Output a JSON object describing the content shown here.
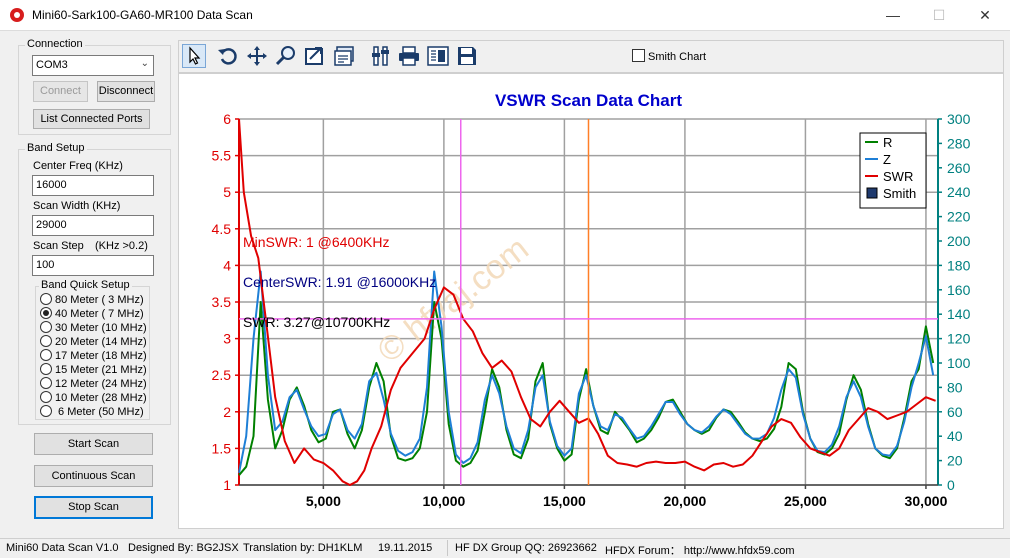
{
  "window": {
    "title": "Mini60-Sark100-GA60-MR100 Data Scan",
    "minimize": "—",
    "maximize": "☐",
    "close": "✕"
  },
  "connection": {
    "title": "Connection",
    "port_value": "COM3",
    "connect_label": "Connect",
    "disconnect_label": "Disconnect",
    "list_ports_label": "List Connected Ports"
  },
  "band_setup": {
    "title": "Band Setup",
    "center_freq_label": "Center Freq  (KHz)",
    "center_freq_value": "16000",
    "scan_width_label": "Scan Width   (KHz)",
    "scan_width_value": "29000",
    "scan_step_label": "Scan Step",
    "scan_step_hint": "(KHz >0.2)",
    "scan_step_value": "100",
    "quick_setup_title": "Band Quick Setup",
    "bands": [
      {
        "label": "80 Meter  ( 3 MHz)",
        "selected": false
      },
      {
        "label": "40 Meter  ( 7 MHz)",
        "selected": true
      },
      {
        "label": "30 Meter (10 MHz)",
        "selected": false
      },
      {
        "label": "20 Meter (14 MHz)",
        "selected": false
      },
      {
        "label": "17 Meter (18 MHz)",
        "selected": false
      },
      {
        "label": "15 Meter (21 MHz)",
        "selected": false
      },
      {
        "label": "12 Meter (24 MHz)",
        "selected": false
      },
      {
        "label": "10 Meter (28 MHz)",
        "selected": false
      },
      {
        "label": " 6 Meter  (50 MHz)",
        "selected": false
      }
    ]
  },
  "scan_buttons": {
    "start": "Start Scan",
    "continuous": "Continuous Scan",
    "stop": "Stop Scan"
  },
  "toolbar": {
    "icons": [
      "pointer-icon",
      "undo-icon",
      "move-icon",
      "zoom-icon",
      "export-icon",
      "chart-properties-icon",
      "settings-icon",
      "print-icon",
      "print-preview-icon",
      "save-icon"
    ],
    "smith_chart_label": "Smith Chart",
    "smith_chart_checked": false
  },
  "chart": {
    "title": "VSWR Scan Data Chart",
    "annotations": {
      "min_swr": "MinSWR: 1 @6400KHz",
      "center_swr": "CenterSWR: 1.91 @16000KHz",
      "cursor_swr": "SWR: 3.27@10700KHz"
    },
    "legend": [
      {
        "name": "R",
        "color": "#008000"
      },
      {
        "name": "Z",
        "color": "#1e7fd6"
      },
      {
        "name": "SWR",
        "color": "#e00000"
      },
      {
        "name": "Smith",
        "color": "#1f3a6e"
      }
    ],
    "colors": {
      "title": "#0000cc",
      "left_axis": "#e00000",
      "right_axis": "#008080",
      "cursor_v": "#ee66ee",
      "cursor_h": "#ee66ee",
      "center_line": "#ff7f27"
    },
    "watermark": "© hfvaj.com"
  },
  "chart_data": {
    "type": "line",
    "title": "VSWR Scan Data Chart",
    "xlim": [
      1500,
      30500
    ],
    "x_ticks": [
      "5,000",
      "10,000",
      "15,000",
      "20,000",
      "25,000",
      "30,000"
    ],
    "x_tick_values": [
      5000,
      10000,
      15000,
      20000,
      25000,
      30000
    ],
    "y_left": {
      "lim": [
        1,
        6
      ],
      "ticks": [
        "1",
        "1.5",
        "2",
        "2.5",
        "3",
        "3.5",
        "4",
        "4.5",
        "5",
        "5.5",
        "6"
      ],
      "tick_values": [
        1,
        1.5,
        2,
        2.5,
        3,
        3.5,
        4,
        4.5,
        5,
        5.5,
        6
      ]
    },
    "y_right": {
      "lim": [
        0,
        300
      ],
      "ticks": [
        "0",
        "20",
        "40",
        "60",
        "80",
        "100",
        "120",
        "140",
        "160",
        "180",
        "200",
        "220",
        "240",
        "260",
        "280",
        "300"
      ],
      "tick_values": [
        0,
        20,
        40,
        60,
        80,
        100,
        120,
        140,
        160,
        180,
        200,
        220,
        240,
        260,
        280,
        300
      ]
    },
    "grid": true,
    "legend_position": "top-right",
    "markers": {
      "vertical_cursor": 10700,
      "horizontal_cursor_swr": 3.27,
      "center_freq": 16000
    },
    "series": [
      {
        "name": "SWR",
        "axis": "left",
        "x": [
          1500,
          1700,
          2000,
          2300,
          2600,
          3000,
          3400,
          3800,
          4200,
          4600,
          5000,
          5400,
          5800,
          6100,
          6400,
          6700,
          7000,
          7400,
          7800,
          8200,
          8700,
          9200,
          9600,
          10000,
          10400,
          10800,
          11200,
          11600,
          12000,
          12400,
          12800,
          13200,
          13600,
          14000,
          14400,
          14800,
          15200,
          15600,
          16000,
          16400,
          16800,
          17200,
          17600,
          18000,
          18400,
          18800,
          19200,
          19600,
          20000,
          20400,
          20800,
          21200,
          21600,
          22000,
          22400,
          22800,
          23200,
          23600,
          24000,
          24400,
          24800,
          25200,
          25600,
          26000,
          26400,
          26800,
          27200,
          27600,
          28000,
          28400,
          28800,
          29200,
          29600,
          30000,
          30400
        ],
        "y": [
          6.0,
          5.0,
          4.4,
          4.1,
          3.3,
          2.2,
          1.6,
          1.3,
          1.5,
          1.35,
          1.3,
          1.2,
          1.05,
          1.0,
          1.05,
          1.2,
          1.5,
          1.8,
          2.3,
          2.6,
          2.8,
          3.0,
          3.4,
          3.7,
          3.6,
          3.27,
          3.1,
          2.8,
          2.6,
          2.7,
          2.55,
          2.2,
          1.9,
          1.8,
          2.0,
          2.15,
          2.0,
          1.85,
          1.91,
          1.7,
          1.4,
          1.3,
          1.28,
          1.25,
          1.3,
          1.32,
          1.3,
          1.3,
          1.32,
          1.25,
          1.2,
          1.28,
          1.3,
          1.25,
          1.28,
          1.4,
          1.6,
          1.8,
          1.9,
          1.85,
          1.65,
          1.5,
          1.45,
          1.4,
          1.5,
          1.75,
          1.9,
          2.05,
          2.0,
          1.9,
          1.95,
          2.0,
          2.1,
          2.2,
          2.15
        ]
      },
      {
        "name": "R",
        "axis": "right",
        "x": [
          1500,
          1800,
          2100,
          2400,
          2700,
          3000,
          3300,
          3600,
          3900,
          4200,
          4500,
          4800,
          5100,
          5400,
          5700,
          6000,
          6300,
          6600,
          6900,
          7200,
          7500,
          7800,
          8100,
          8400,
          8700,
          9000,
          9300,
          9600,
          9900,
          10200,
          10500,
          10800,
          11100,
          11400,
          11700,
          12000,
          12300,
          12600,
          12900,
          13200,
          13500,
          13800,
          14100,
          14400,
          14700,
          15000,
          15300,
          15600,
          15900,
          16200,
          16500,
          16800,
          17100,
          17400,
          17700,
          18000,
          18300,
          18600,
          18900,
          19200,
          19500,
          19800,
          20100,
          20400,
          20700,
          21000,
          21300,
          21600,
          21900,
          22200,
          22500,
          22800,
          23100,
          23400,
          23700,
          24000,
          24300,
          24600,
          24900,
          25200,
          25500,
          25800,
          26100,
          26400,
          26700,
          27000,
          27300,
          27600,
          27900,
          28200,
          28500,
          28800,
          29100,
          29400,
          29700,
          30000,
          30300
        ],
        "y": [
          8,
          15,
          40,
          150,
          70,
          30,
          45,
          70,
          80,
          65,
          45,
          35,
          38,
          60,
          62,
          42,
          30,
          45,
          80,
          100,
          85,
          40,
          22,
          20,
          22,
          30,
          60,
          150,
          120,
          50,
          20,
          15,
          18,
          28,
          60,
          95,
          80,
          45,
          25,
          22,
          38,
          85,
          100,
          50,
          30,
          20,
          25,
          70,
          95,
          65,
          45,
          42,
          60,
          53,
          45,
          35,
          38,
          45,
          55,
          68,
          70,
          60,
          50,
          45,
          42,
          45,
          55,
          62,
          60,
          52,
          43,
          38,
          36,
          38,
          46,
          64,
          100,
          95,
          60,
          38,
          27,
          25,
          30,
          42,
          70,
          90,
          78,
          50,
          30,
          24,
          22,
          30,
          55,
          85,
          95,
          130,
          100
        ]
      },
      {
        "name": "Z",
        "axis": "right",
        "x": [
          1500,
          1800,
          2100,
          2400,
          2700,
          3000,
          3300,
          3600,
          3900,
          4200,
          4500,
          4800,
          5100,
          5400,
          5700,
          6000,
          6300,
          6600,
          6900,
          7200,
          7500,
          7800,
          8100,
          8400,
          8700,
          9000,
          9300,
          9600,
          9900,
          10200,
          10500,
          10800,
          11100,
          11400,
          11700,
          12000,
          12300,
          12600,
          12900,
          13200,
          13500,
          13800,
          14100,
          14400,
          14700,
          15000,
          15300,
          15600,
          15900,
          16200,
          16500,
          16800,
          17100,
          17400,
          17700,
          18000,
          18300,
          18600,
          18900,
          19200,
          19500,
          19800,
          20100,
          20400,
          20700,
          21000,
          21300,
          21600,
          21900,
          22200,
          22500,
          22800,
          23100,
          23400,
          23700,
          24000,
          24300,
          24600,
          24900,
          25200,
          25500,
          25800,
          26100,
          26400,
          26700,
          27000,
          27300,
          27600,
          27900,
          28200,
          28500,
          28800,
          29100,
          29400,
          29700,
          30000,
          30300
        ],
        "y": [
          10,
          40,
          120,
          175,
          90,
          45,
          52,
          72,
          78,
          62,
          48,
          40,
          42,
          58,
          62,
          45,
          38,
          50,
          85,
          92,
          70,
          42,
          28,
          24,
          27,
          38,
          80,
          175,
          130,
          60,
          25,
          18,
          22,
          35,
          70,
          90,
          75,
          48,
          30,
          26,
          45,
          80,
          90,
          52,
          32,
          24,
          30,
          75,
          90,
          65,
          48,
          45,
          58,
          55,
          46,
          38,
          40,
          48,
          58,
          68,
          68,
          58,
          50,
          45,
          43,
          48,
          56,
          62,
          58,
          50,
          42,
          38,
          38,
          42,
          55,
          78,
          95,
          88,
          58,
          38,
          28,
          27,
          33,
          48,
          72,
          85,
          72,
          48,
          30,
          25,
          24,
          32,
          52,
          80,
          100,
          122,
          90
        ]
      }
    ]
  },
  "statusbar": {
    "version": "Mini60 Data Scan V1.0",
    "designer": "Designed By: BG2JSX",
    "translation": "Translation by: DH1KLM",
    "date": "19.11.2015",
    "group": "HF DX Group QQ: 26923662",
    "forum": "HFDX Forum：  http://www.hfdx59.com"
  }
}
